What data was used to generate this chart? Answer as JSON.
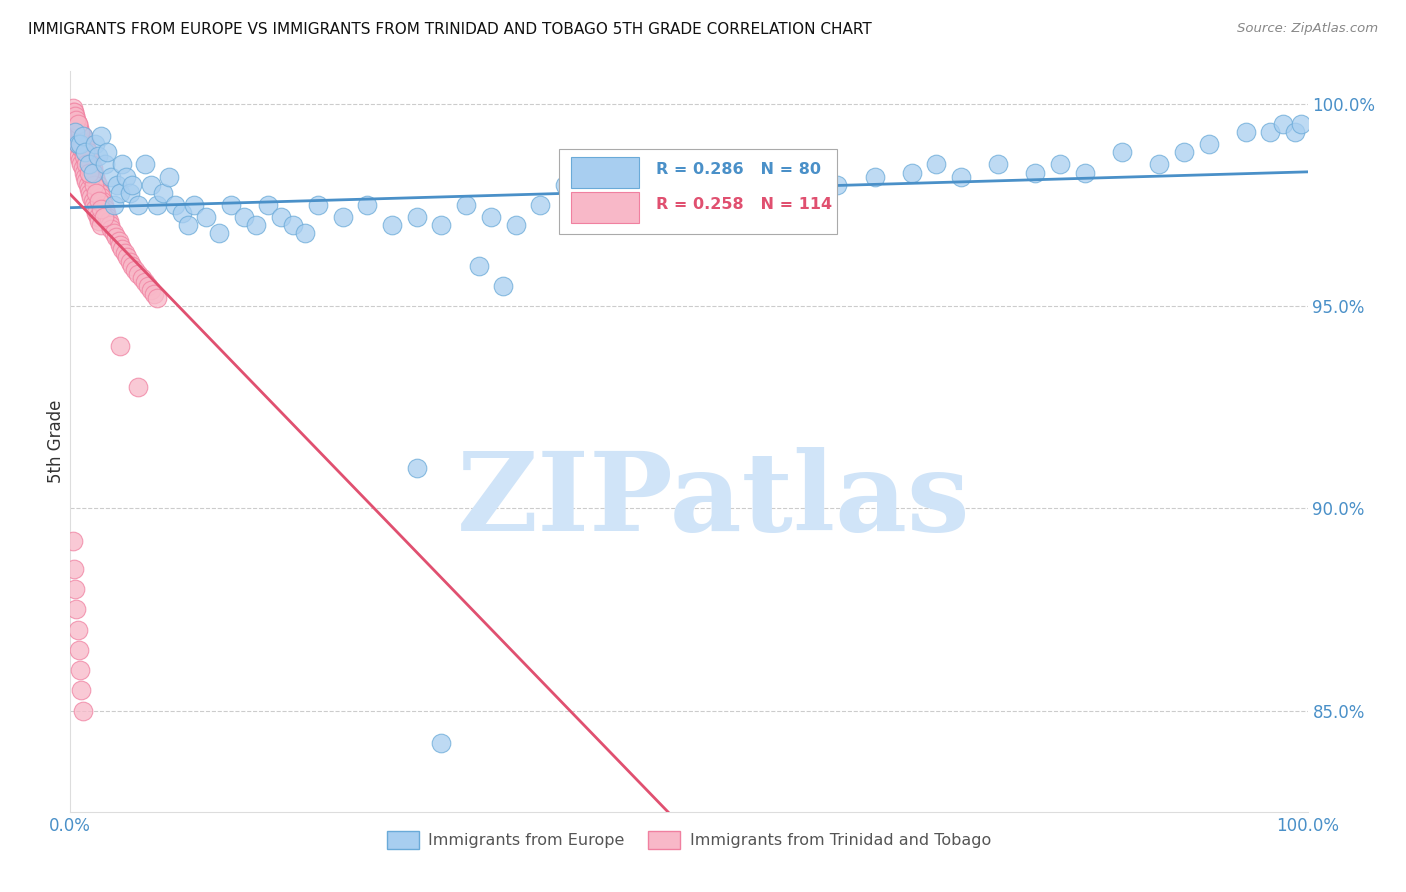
{
  "title": "IMMIGRANTS FROM EUROPE VS IMMIGRANTS FROM TRINIDAD AND TOBAGO 5TH GRADE CORRELATION CHART",
  "source": "Source: ZipAtlas.com",
  "ylabel": "5th Grade",
  "series1_label": "Immigrants from Europe",
  "series1_color": "#A8CEF0",
  "series1_edge_color": "#6AAAD8",
  "series1_R": 0.286,
  "series1_N": 80,
  "series2_label": "Immigrants from Trinidad and Tobago",
  "series2_color": "#F8B8C8",
  "series2_edge_color": "#F080A0",
  "series2_R": 0.258,
  "series2_N": 114,
  "trend1_color": "#4A90C8",
  "trend2_color": "#E05070",
  "watermark_text": "ZIPatlas",
  "watermark_color": "#D0E4F8",
  "background_color": "#ffffff",
  "grid_color": "#cccccc",
  "title_color": "#111111",
  "right_axis_color": "#4A90C8",
  "xlim": [
    0.0,
    1.0
  ],
  "ylim": [
    0.825,
    1.008
  ],
  "yticks": [
    0.85,
    0.9,
    0.95,
    1.0
  ],
  "ytick_labels": [
    "85.0%",
    "90.0%",
    "95.0%",
    "100.0%"
  ],
  "series1_x": [
    0.004,
    0.006,
    0.008,
    0.01,
    0.012,
    0.015,
    0.018,
    0.02,
    0.022,
    0.025,
    0.028,
    0.03,
    0.033,
    0.035,
    0.038,
    0.04,
    0.042,
    0.045,
    0.048,
    0.05,
    0.055,
    0.06,
    0.065,
    0.07,
    0.075,
    0.08,
    0.085,
    0.09,
    0.095,
    0.1,
    0.11,
    0.12,
    0.13,
    0.14,
    0.15,
    0.16,
    0.17,
    0.18,
    0.19,
    0.2,
    0.22,
    0.24,
    0.26,
    0.28,
    0.3,
    0.32,
    0.34,
    0.36,
    0.38,
    0.4,
    0.42,
    0.45,
    0.48,
    0.5,
    0.52,
    0.55,
    0.58,
    0.6,
    0.62,
    0.65,
    0.68,
    0.7,
    0.72,
    0.75,
    0.78,
    0.8,
    0.82,
    0.85,
    0.88,
    0.9,
    0.92,
    0.95,
    0.97,
    0.98,
    0.99,
    0.995,
    0.28,
    0.3,
    0.33,
    0.35
  ],
  "series1_y": [
    0.993,
    0.99,
    0.99,
    0.992,
    0.988,
    0.985,
    0.983,
    0.99,
    0.987,
    0.992,
    0.985,
    0.988,
    0.982,
    0.975,
    0.98,
    0.978,
    0.985,
    0.982,
    0.978,
    0.98,
    0.975,
    0.985,
    0.98,
    0.975,
    0.978,
    0.982,
    0.975,
    0.973,
    0.97,
    0.975,
    0.972,
    0.968,
    0.975,
    0.972,
    0.97,
    0.975,
    0.972,
    0.97,
    0.968,
    0.975,
    0.972,
    0.975,
    0.97,
    0.972,
    0.97,
    0.975,
    0.972,
    0.97,
    0.975,
    0.98,
    0.975,
    0.978,
    0.975,
    0.98,
    0.975,
    0.98,
    0.978,
    0.982,
    0.98,
    0.982,
    0.983,
    0.985,
    0.982,
    0.985,
    0.983,
    0.985,
    0.983,
    0.988,
    0.985,
    0.988,
    0.99,
    0.993,
    0.993,
    0.995,
    0.993,
    0.995,
    0.91,
    0.842,
    0.96,
    0.955
  ],
  "series2_x": [
    0.002,
    0.002,
    0.003,
    0.003,
    0.004,
    0.004,
    0.005,
    0.005,
    0.006,
    0.006,
    0.007,
    0.007,
    0.008,
    0.008,
    0.009,
    0.009,
    0.01,
    0.01,
    0.011,
    0.011,
    0.012,
    0.012,
    0.013,
    0.013,
    0.014,
    0.014,
    0.015,
    0.015,
    0.016,
    0.016,
    0.017,
    0.017,
    0.018,
    0.018,
    0.019,
    0.019,
    0.02,
    0.02,
    0.021,
    0.021,
    0.022,
    0.022,
    0.023,
    0.023,
    0.024,
    0.025,
    0.025,
    0.026,
    0.027,
    0.028,
    0.029,
    0.03,
    0.031,
    0.032,
    0.033,
    0.035,
    0.037,
    0.039,
    0.04,
    0.042,
    0.044,
    0.046,
    0.048,
    0.05,
    0.052,
    0.055,
    0.058,
    0.06,
    0.063,
    0.065,
    0.068,
    0.07,
    0.003,
    0.005,
    0.007,
    0.009,
    0.011,
    0.013,
    0.015,
    0.017,
    0.019,
    0.021,
    0.023,
    0.025,
    0.027,
    0.003,
    0.005,
    0.007,
    0.009,
    0.011,
    0.013,
    0.015,
    0.003,
    0.004,
    0.005,
    0.006,
    0.007,
    0.008,
    0.002,
    0.003,
    0.004,
    0.005,
    0.006,
    0.04,
    0.055,
    0.002,
    0.003,
    0.004,
    0.005,
    0.006,
    0.007,
    0.008,
    0.009,
    0.01
  ],
  "series2_y": [
    0.998,
    0.995,
    0.997,
    0.993,
    0.996,
    0.992,
    0.995,
    0.99,
    0.994,
    0.988,
    0.993,
    0.987,
    0.992,
    0.986,
    0.991,
    0.985,
    0.992,
    0.984,
    0.991,
    0.983,
    0.99,
    0.982,
    0.989,
    0.981,
    0.988,
    0.98,
    0.987,
    0.979,
    0.986,
    0.978,
    0.985,
    0.977,
    0.984,
    0.976,
    0.983,
    0.975,
    0.982,
    0.974,
    0.981,
    0.973,
    0.98,
    0.972,
    0.979,
    0.971,
    0.978,
    0.977,
    0.97,
    0.976,
    0.975,
    0.974,
    0.973,
    0.972,
    0.971,
    0.97,
    0.969,
    0.968,
    0.967,
    0.966,
    0.965,
    0.964,
    0.963,
    0.962,
    0.961,
    0.96,
    0.959,
    0.958,
    0.957,
    0.956,
    0.955,
    0.954,
    0.953,
    0.952,
    0.996,
    0.994,
    0.992,
    0.99,
    0.988,
    0.986,
    0.984,
    0.982,
    0.98,
    0.978,
    0.976,
    0.974,
    0.972,
    0.995,
    0.993,
    0.991,
    0.989,
    0.987,
    0.985,
    0.983,
    0.998,
    0.997,
    0.996,
    0.995,
    0.994,
    0.993,
    0.999,
    0.998,
    0.997,
    0.996,
    0.995,
    0.94,
    0.93,
    0.892,
    0.885,
    0.88,
    0.875,
    0.87,
    0.865,
    0.86,
    0.855,
    0.85
  ]
}
